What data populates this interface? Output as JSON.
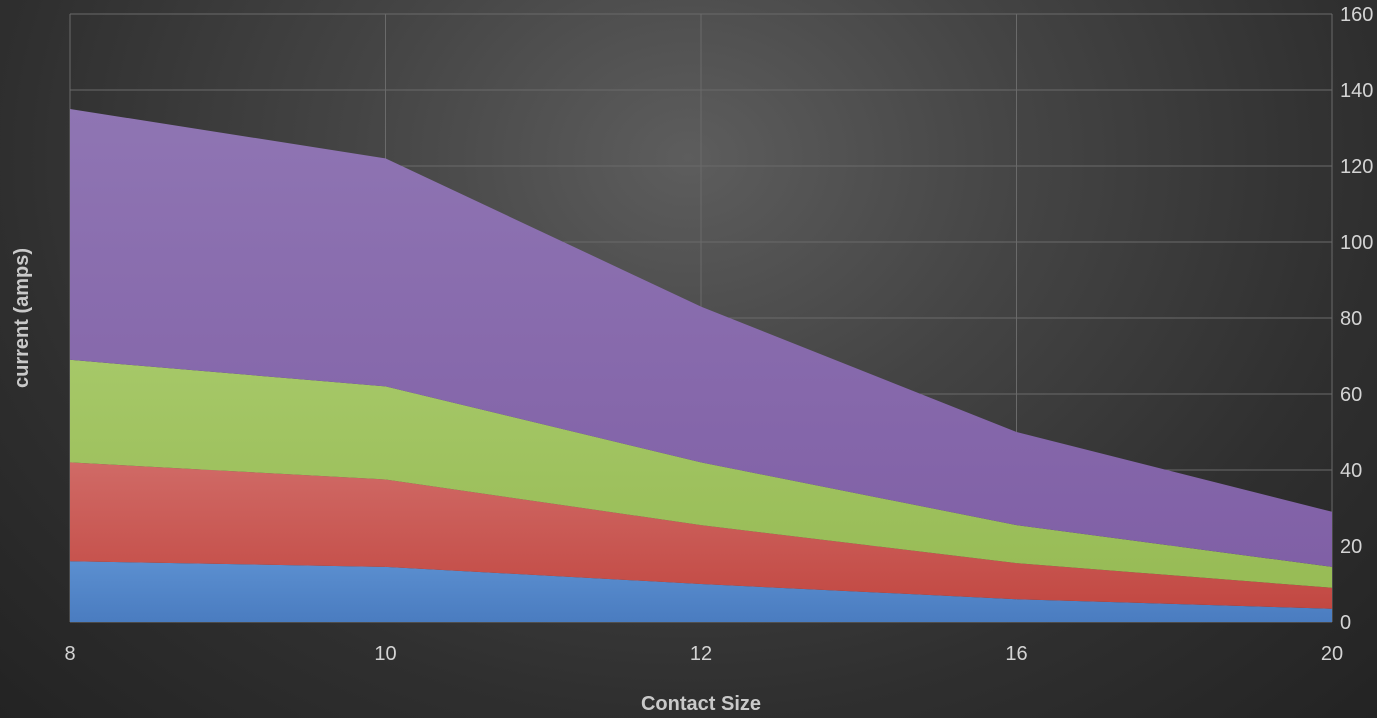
{
  "chart_data": {
    "type": "area",
    "stacked": true,
    "categories": [
      "8",
      "10",
      "12",
      "16",
      "20"
    ],
    "series": [
      {
        "values": [
          16,
          14.5,
          10,
          6,
          3.5
        ],
        "color": "#4f81bd"
      },
      {
        "values": [
          26,
          23,
          15.5,
          9.5,
          5.5
        ],
        "color": "#c0504d"
      },
      {
        "values": [
          27,
          24.5,
          16.5,
          10,
          5.5
        ],
        "color": "#9bbb59"
      },
      {
        "values": [
          66,
          60,
          41,
          24.5,
          14.5
        ],
        "color": "#8064a2"
      }
    ],
    "xlabel": "Contact Size",
    "ylabel": "current (amps)",
    "ylim": [
      0,
      160
    ],
    "yticks": [
      0,
      20,
      40,
      60,
      80,
      100,
      120,
      140,
      160
    ],
    "yaxis_position": "right",
    "grid": true,
    "legend": "none"
  }
}
